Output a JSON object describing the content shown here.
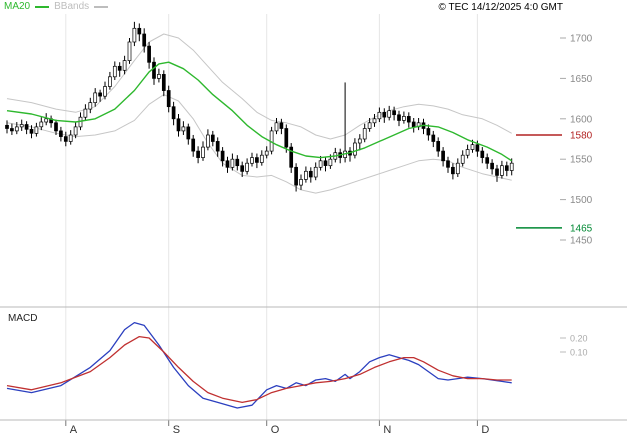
{
  "header": {
    "legend": [
      {
        "label": "MA20",
        "color": "#2eb82e"
      },
      {
        "label": "BBands",
        "color": "#bdbdbd"
      }
    ],
    "timestamp": "© TEC 14/12/2025 4:0 GMT"
  },
  "colors": {
    "ma20": "#2eb82e",
    "bbands": "#c6c6c6",
    "candle": "#000000",
    "macd_line": "#2b3fbf",
    "macd_signal": "#c03030",
    "grid": "#e6e6e6",
    "panel_border": "#b8b8b8",
    "scale_text": "#8a8a8a",
    "axis_text": "#333333"
  },
  "chart_data": {
    "type": "candlestick",
    "title": "",
    "x_axis": {
      "months": [
        {
          "label": "A",
          "i": 12
        },
        {
          "label": "S",
          "i": 33
        },
        {
          "label": "O",
          "i": 53
        },
        {
          "label": "N",
          "i": 76
        },
        {
          "label": "D",
          "i": 96
        }
      ]
    },
    "price_panel": {
      "ylim": [
        1420,
        1735
      ],
      "y_ticks": [
        1700,
        1650,
        1600,
        1550,
        1500,
        1450
      ],
      "levels": [
        {
          "value": 1580,
          "color": "#b22222"
        },
        {
          "value": 1465,
          "color": "#008833"
        }
      ],
      "ma20": [
        [
          0,
          1610
        ],
        [
          5,
          1606
        ],
        [
          10,
          1598
        ],
        [
          14,
          1596
        ],
        [
          18,
          1600
        ],
        [
          22,
          1612
        ],
        [
          26,
          1635
        ],
        [
          29,
          1658
        ],
        [
          31,
          1668
        ],
        [
          33,
          1670
        ],
        [
          36,
          1662
        ],
        [
          39,
          1648
        ],
        [
          42,
          1630
        ],
        [
          46,
          1610
        ],
        [
          49,
          1592
        ],
        [
          52,
          1578
        ],
        [
          55,
          1568
        ],
        [
          58,
          1560
        ],
        [
          61,
          1554
        ],
        [
          64,
          1552
        ],
        [
          67,
          1554
        ],
        [
          70,
          1558
        ],
        [
          73,
          1564
        ],
        [
          76,
          1572
        ],
        [
          79,
          1580
        ],
        [
          82,
          1588
        ],
        [
          85,
          1592
        ],
        [
          88,
          1590
        ],
        [
          91,
          1583
        ],
        [
          94,
          1574
        ],
        [
          98,
          1565
        ],
        [
          101,
          1556
        ],
        [
          103,
          1548
        ]
      ],
      "bb_upper": [
        [
          0,
          1625
        ],
        [
          5,
          1620
        ],
        [
          10,
          1612
        ],
        [
          14,
          1608
        ],
        [
          18,
          1615
        ],
        [
          22,
          1640
        ],
        [
          26,
          1672
        ],
        [
          29,
          1695
        ],
        [
          32,
          1705
        ],
        [
          35,
          1700
        ],
        [
          38,
          1685
        ],
        [
          41,
          1665
        ],
        [
          44,
          1645
        ],
        [
          48,
          1625
        ],
        [
          51,
          1608
        ],
        [
          54,
          1598
        ],
        [
          57,
          1595
        ],
        [
          60,
          1590
        ],
        [
          63,
          1580
        ],
        [
          66,
          1575
        ],
        [
          69,
          1580
        ],
        [
          72,
          1592
        ],
        [
          75,
          1602
        ],
        [
          78,
          1610
        ],
        [
          81,
          1615
        ],
        [
          84,
          1618
        ],
        [
          87,
          1616
        ],
        [
          90,
          1612
        ],
        [
          93,
          1605
        ],
        [
          97,
          1600
        ],
        [
          100,
          1592
        ],
        [
          103,
          1582
        ]
      ],
      "bb_lower": [
        [
          0,
          1595
        ],
        [
          5,
          1590
        ],
        [
          10,
          1582
        ],
        [
          14,
          1578
        ],
        [
          18,
          1580
        ],
        [
          22,
          1585
        ],
        [
          26,
          1598
        ],
        [
          29,
          1618
        ],
        [
          32,
          1630
        ],
        [
          35,
          1622
        ],
        [
          38,
          1600
        ],
        [
          41,
          1570
        ],
        [
          44,
          1545
        ],
        [
          48,
          1530
        ],
        [
          51,
          1528
        ],
        [
          54,
          1530
        ],
        [
          57,
          1522
        ],
        [
          60,
          1512
        ],
        [
          63,
          1508
        ],
        [
          66,
          1512
        ],
        [
          69,
          1518
        ],
        [
          72,
          1524
        ],
        [
          75,
          1530
        ],
        [
          78,
          1536
        ],
        [
          81,
          1542
        ],
        [
          84,
          1548
        ],
        [
          87,
          1550
        ],
        [
          90,
          1548
        ],
        [
          93,
          1540
        ],
        [
          97,
          1532
        ],
        [
          100,
          1528
        ],
        [
          103,
          1524
        ]
      ],
      "candles": [
        [
          1592,
          1598,
          1582,
          1588
        ],
        [
          1588,
          1594,
          1580,
          1585
        ],
        [
          1585,
          1596,
          1581,
          1590
        ],
        [
          1590,
          1599,
          1585,
          1593
        ],
        [
          1593,
          1597,
          1581,
          1587
        ],
        [
          1587,
          1592,
          1576,
          1582
        ],
        [
          1582,
          1595,
          1578,
          1590
        ],
        [
          1590,
          1602,
          1586,
          1596
        ],
        [
          1596,
          1607,
          1592,
          1600
        ],
        [
          1600,
          1604,
          1589,
          1595
        ],
        [
          1595,
          1599,
          1580,
          1585
        ],
        [
          1585,
          1590,
          1572,
          1578
        ],
        [
          1578,
          1584,
          1566,
          1572
        ],
        [
          1572,
          1586,
          1568,
          1580
        ],
        [
          1580,
          1596,
          1576,
          1590
        ],
        [
          1590,
          1608,
          1586,
          1602
        ],
        [
          1602,
          1618,
          1598,
          1612
        ],
        [
          1612,
          1626,
          1607,
          1620
        ],
        [
          1620,
          1638,
          1615,
          1632
        ],
        [
          1632,
          1636,
          1621,
          1628
        ],
        [
          1628,
          1646,
          1624,
          1640
        ],
        [
          1640,
          1658,
          1636,
          1652
        ],
        [
          1652,
          1671,
          1648,
          1665
        ],
        [
          1665,
          1670,
          1652,
          1660
        ],
        [
          1660,
          1678,
          1655,
          1672
        ],
        [
          1672,
          1700,
          1668,
          1695
        ],
        [
          1695,
          1720,
          1690,
          1712
        ],
        [
          1712,
          1718,
          1696,
          1705
        ],
        [
          1705,
          1712,
          1682,
          1690
        ],
        [
          1690,
          1695,
          1662,
          1670
        ],
        [
          1670,
          1676,
          1642,
          1650
        ],
        [
          1650,
          1662,
          1645,
          1655
        ],
        [
          1655,
          1660,
          1628,
          1635
        ],
        [
          1635,
          1641,
          1608,
          1615
        ],
        [
          1615,
          1621,
          1592,
          1600
        ],
        [
          1600,
          1606,
          1578,
          1585
        ],
        [
          1585,
          1597,
          1580,
          1590
        ],
        [
          1590,
          1594,
          1568,
          1575
        ],
        [
          1575,
          1580,
          1553,
          1560
        ],
        [
          1560,
          1566,
          1545,
          1552
        ],
        [
          1552,
          1572,
          1548,
          1565
        ],
        [
          1565,
          1587,
          1561,
          1580
        ],
        [
          1580,
          1585,
          1566,
          1572
        ],
        [
          1572,
          1577,
          1553,
          1560
        ],
        [
          1560,
          1565,
          1541,
          1548
        ],
        [
          1548,
          1553,
          1533,
          1540
        ],
        [
          1540,
          1557,
          1536,
          1550
        ],
        [
          1550,
          1555,
          1536,
          1542
        ],
        [
          1542,
          1547,
          1528,
          1535
        ],
        [
          1535,
          1551,
          1531,
          1545
        ],
        [
          1545,
          1558,
          1541,
          1552
        ],
        [
          1552,
          1557,
          1539,
          1546
        ],
        [
          1546,
          1561,
          1542,
          1555
        ],
        [
          1555,
          1566,
          1551,
          1560
        ],
        [
          1560,
          1590,
          1556,
          1585
        ],
        [
          1585,
          1601,
          1581,
          1595
        ],
        [
          1595,
          1600,
          1581,
          1588
        ],
        [
          1588,
          1593,
          1558,
          1565
        ],
        [
          1565,
          1570,
          1533,
          1540
        ],
        [
          1540,
          1545,
          1510,
          1518
        ],
        [
          1518,
          1531,
          1512,
          1525
        ],
        [
          1525,
          1541,
          1521,
          1535
        ],
        [
          1535,
          1540,
          1521,
          1528
        ],
        [
          1528,
          1546,
          1524,
          1540
        ],
        [
          1540,
          1554,
          1536,
          1548
        ],
        [
          1548,
          1553,
          1535,
          1542
        ],
        [
          1542,
          1556,
          1538,
          1550
        ],
        [
          1550,
          1564,
          1546,
          1558
        ],
        [
          1558,
          1563,
          1545,
          1552
        ],
        [
          1552,
          1645,
          1546,
          1560
        ],
        [
          1560,
          1565,
          1547,
          1555
        ],
        [
          1555,
          1576,
          1551,
          1570
        ],
        [
          1570,
          1581,
          1561,
          1575
        ],
        [
          1575,
          1594,
          1571,
          1588
        ],
        [
          1588,
          1601,
          1584,
          1595
        ],
        [
          1595,
          1606,
          1590,
          1600
        ],
        [
          1600,
          1614,
          1596,
          1608
        ],
        [
          1608,
          1613,
          1595,
          1602
        ],
        [
          1602,
          1616,
          1598,
          1610
        ],
        [
          1610,
          1615,
          1598,
          1605
        ],
        [
          1605,
          1610,
          1591,
          1598
        ],
        [
          1598,
          1609,
          1594,
          1603
        ],
        [
          1603,
          1608,
          1589,
          1596
        ],
        [
          1596,
          1601,
          1583,
          1590
        ],
        [
          1590,
          1601,
          1586,
          1595
        ],
        [
          1595,
          1600,
          1581,
          1588
        ],
        [
          1588,
          1593,
          1573,
          1580
        ],
        [
          1580,
          1585,
          1565,
          1572
        ],
        [
          1572,
          1577,
          1553,
          1560
        ],
        [
          1560,
          1565,
          1541,
          1548
        ],
        [
          1548,
          1553,
          1533,
          1540
        ],
        [
          1540,
          1545,
          1525,
          1532
        ],
        [
          1532,
          1551,
          1528,
          1545
        ],
        [
          1545,
          1561,
          1541,
          1555
        ],
        [
          1555,
          1568,
          1551,
          1562
        ],
        [
          1562,
          1574,
          1558,
          1568
        ],
        [
          1568,
          1573,
          1553,
          1560
        ],
        [
          1560,
          1565,
          1545,
          1552
        ],
        [
          1552,
          1557,
          1538,
          1545
        ],
        [
          1545,
          1550,
          1531,
          1538
        ],
        [
          1538,
          1543,
          1522,
          1530
        ],
        [
          1530,
          1548,
          1526,
          1542
        ],
        [
          1542,
          1547,
          1529,
          1536
        ],
        [
          1536,
          1551,
          1530,
          1545
        ]
      ]
    },
    "macd_panel": {
      "label": "MACD",
      "ylim": [
        -0.38,
        0.42
      ],
      "y_ticks": [
        0.2,
        0.1
      ],
      "macd": [
        [
          0,
          -0.16
        ],
        [
          5,
          -0.19
        ],
        [
          11,
          -0.14
        ],
        [
          17,
          -0.01
        ],
        [
          21,
          0.11
        ],
        [
          24,
          0.26
        ],
        [
          26,
          0.31
        ],
        [
          28,
          0.29
        ],
        [
          31,
          0.15
        ],
        [
          34,
          -0.01
        ],
        [
          37,
          -0.14
        ],
        [
          40,
          -0.23
        ],
        [
          43,
          -0.26
        ],
        [
          47,
          -0.3
        ],
        [
          50,
          -0.28
        ],
        [
          53,
          -0.17
        ],
        [
          55,
          -0.14
        ],
        [
          57,
          -0.16
        ],
        [
          59,
          -0.12
        ],
        [
          61,
          -0.14
        ],
        [
          63,
          -0.1
        ],
        [
          65,
          -0.09
        ],
        [
          67,
          -0.11
        ],
        [
          69,
          -0.06
        ],
        [
          70,
          -0.09
        ],
        [
          72,
          -0.04
        ],
        [
          74,
          0.03
        ],
        [
          76,
          0.06
        ],
        [
          78,
          0.08
        ],
        [
          80,
          0.06
        ],
        [
          82,
          0.04
        ],
        [
          84,
          0.01
        ],
        [
          86,
          -0.04
        ],
        [
          88,
          -0.09
        ],
        [
          90,
          -0.1
        ],
        [
          92,
          -0.09
        ],
        [
          94,
          -0.08
        ],
        [
          97,
          -0.09
        ],
        [
          99,
          -0.1
        ],
        [
          101,
          -0.11
        ],
        [
          103,
          -0.12
        ]
      ],
      "signal": [
        [
          0,
          -0.14
        ],
        [
          5,
          -0.17
        ],
        [
          11,
          -0.12
        ],
        [
          17,
          -0.04
        ],
        [
          21,
          0.06
        ],
        [
          24,
          0.15
        ],
        [
          27,
          0.21
        ],
        [
          29,
          0.2
        ],
        [
          32,
          0.1
        ],
        [
          35,
          -0.01
        ],
        [
          38,
          -0.11
        ],
        [
          41,
          -0.19
        ],
        [
          44,
          -0.23
        ],
        [
          48,
          -0.26
        ],
        [
          51,
          -0.24
        ],
        [
          54,
          -0.19
        ],
        [
          57,
          -0.16
        ],
        [
          60,
          -0.14
        ],
        [
          63,
          -0.12
        ],
        [
          66,
          -0.11
        ],
        [
          69,
          -0.09
        ],
        [
          72,
          -0.06
        ],
        [
          75,
          -0.01
        ],
        [
          78,
          0.03
        ],
        [
          81,
          0.06
        ],
        [
          83,
          0.06
        ],
        [
          85,
          0.03
        ],
        [
          88,
          -0.03
        ],
        [
          91,
          -0.07
        ],
        [
          94,
          -0.09
        ],
        [
          97,
          -0.09
        ],
        [
          100,
          -0.1
        ],
        [
          103,
          -0.1
        ]
      ]
    }
  }
}
